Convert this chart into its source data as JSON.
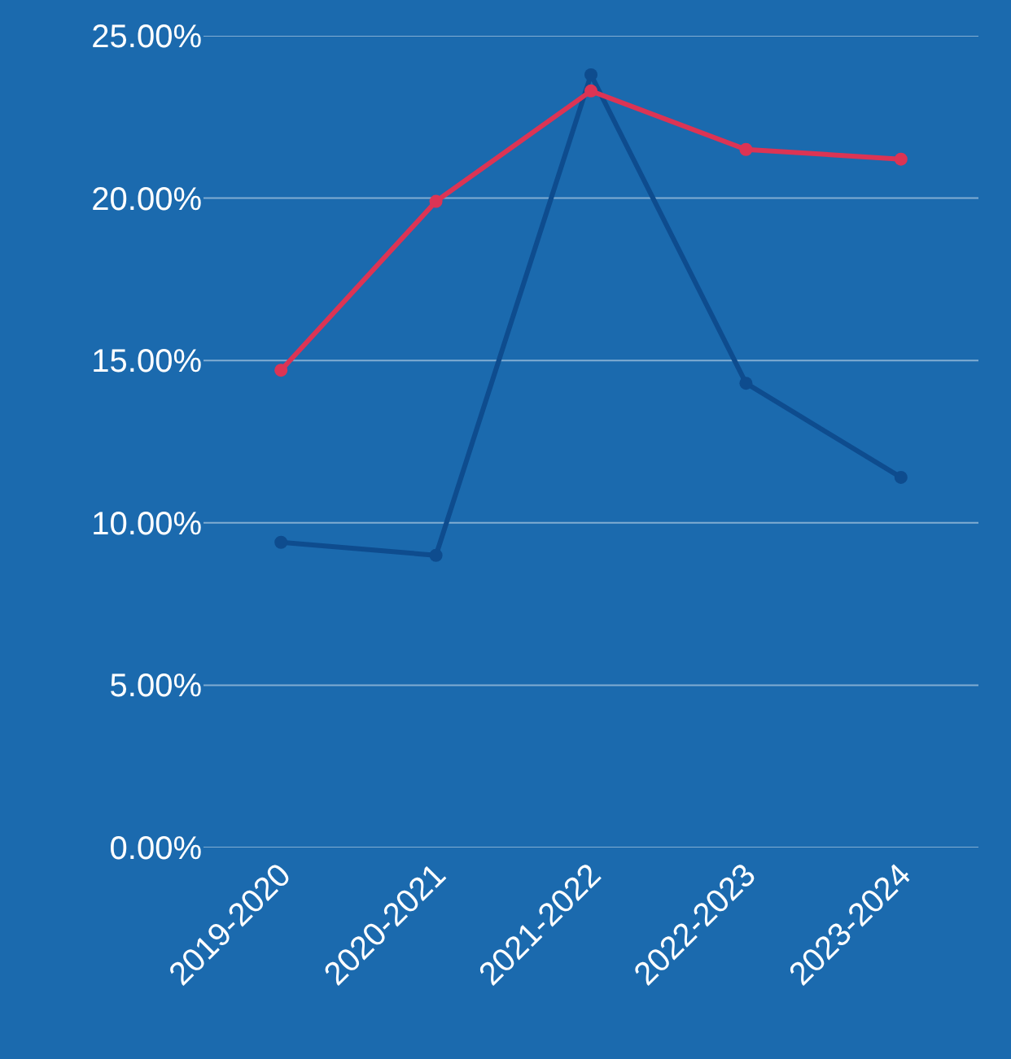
{
  "chart_data": {
    "type": "line",
    "categories": [
      "2019-2020",
      "2020-2021",
      "2021-2022",
      "2022-2023",
      "2023-2024"
    ],
    "series": [
      {
        "color": "#0e4c8e",
        "values": [
          9.4,
          9.0,
          23.8,
          14.3,
          11.4
        ]
      },
      {
        "color": "#dc3454",
        "values": [
          14.7,
          19.9,
          23.3,
          21.5,
          21.2
        ]
      }
    ],
    "ylim": [
      0,
      25
    ],
    "yticks": [
      {
        "value": 0,
        "label": "0.00%"
      },
      {
        "value": 5,
        "label": "5.00%"
      },
      {
        "value": 10,
        "label": "10.00%"
      },
      {
        "value": 15,
        "label": "15.00%"
      },
      {
        "value": 20,
        "label": "20.00%"
      },
      {
        "value": 25,
        "label": "25.00%"
      }
    ],
    "grid": "y",
    "marker": "circle",
    "line_style": "solid"
  }
}
